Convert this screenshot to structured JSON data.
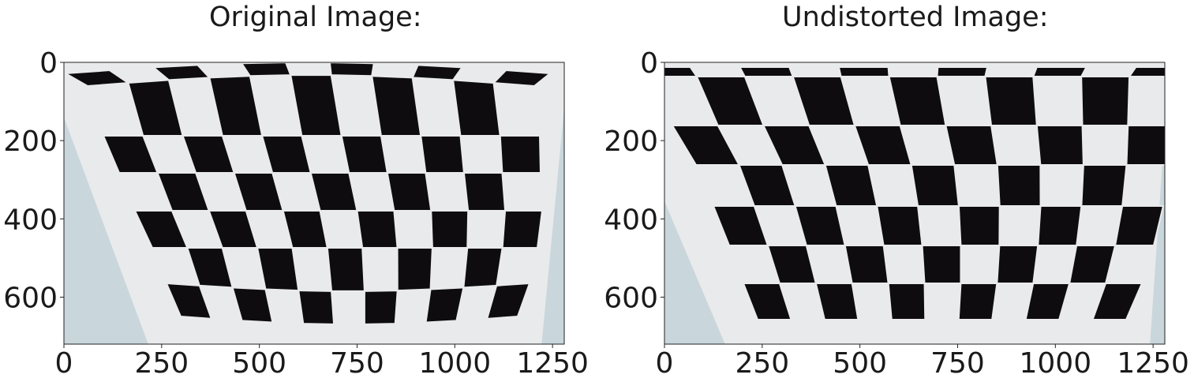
{
  "panels": [
    {
      "title": "Original Image:",
      "x_ticks": [
        "0",
        "250",
        "500",
        "750",
        "1000",
        "1250"
      ],
      "y_ticks": [
        "0",
        "200",
        "400",
        "600"
      ]
    },
    {
      "title": "Undistorted Image:",
      "x_ticks": [
        "0",
        "250",
        "500",
        "750",
        "1000",
        "1250"
      ],
      "y_ticks": [
        "0",
        "200",
        "400",
        "600"
      ]
    }
  ],
  "colors": {
    "paper": "#e9eaec",
    "wall": "#c9d7dc",
    "square": "#0f0c10",
    "frame": "#222222"
  }
}
